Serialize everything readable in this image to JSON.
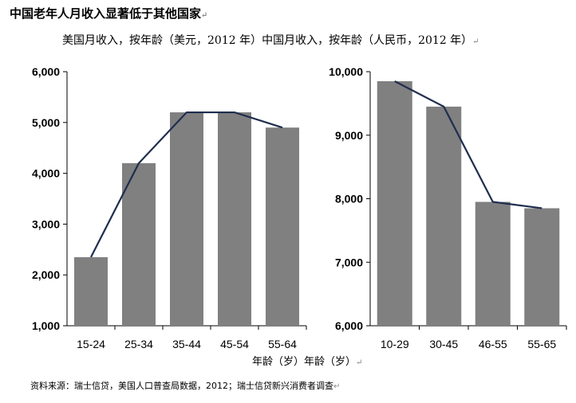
{
  "title": "中国老年人月收入显著低于其他国家",
  "subtitle_left": "美国月收入，按年龄（美元，2012 年）",
  "subtitle_right": "中国月收入，按年龄（人民币，2012 年）",
  "paragraph_mark": "↵",
  "xlabel_left": "年龄（岁）",
  "xlabel_right": "年龄（岁）",
  "source": "资料来源：瑞士信贷，美国人口普查局数据，2012；瑞士信贷新兴消费者调查",
  "colors": {
    "bar": "#808080",
    "line": "#1f2d4e",
    "axis": "#000000"
  },
  "chart_data": [
    {
      "type": "bar",
      "categories": [
        "15-24",
        "25-34",
        "35-44",
        "45-54",
        "55-64"
      ],
      "values": [
        2350,
        4200,
        5200,
        5200,
        4900
      ],
      "ylim": [
        1000,
        6000
      ],
      "yticks": [
        1000,
        2000,
        3000,
        4000,
        5000,
        6000
      ],
      "ytick_labels": [
        "1,000",
        "2,000",
        "3,000",
        "4,000",
        "5,000",
        "6,000"
      ],
      "overlay_line": true
    },
    {
      "type": "bar",
      "categories": [
        "10-29",
        "30-45",
        "46-55",
        "55-65"
      ],
      "values": [
        9850,
        9450,
        7950,
        7850
      ],
      "ylim": [
        6000,
        10000
      ],
      "yticks": [
        6000,
        7000,
        8000,
        9000,
        10000
      ],
      "ytick_labels": [
        "6,000",
        "7,000",
        "8,000",
        "9,000",
        "10,000"
      ],
      "overlay_line": true
    }
  ]
}
